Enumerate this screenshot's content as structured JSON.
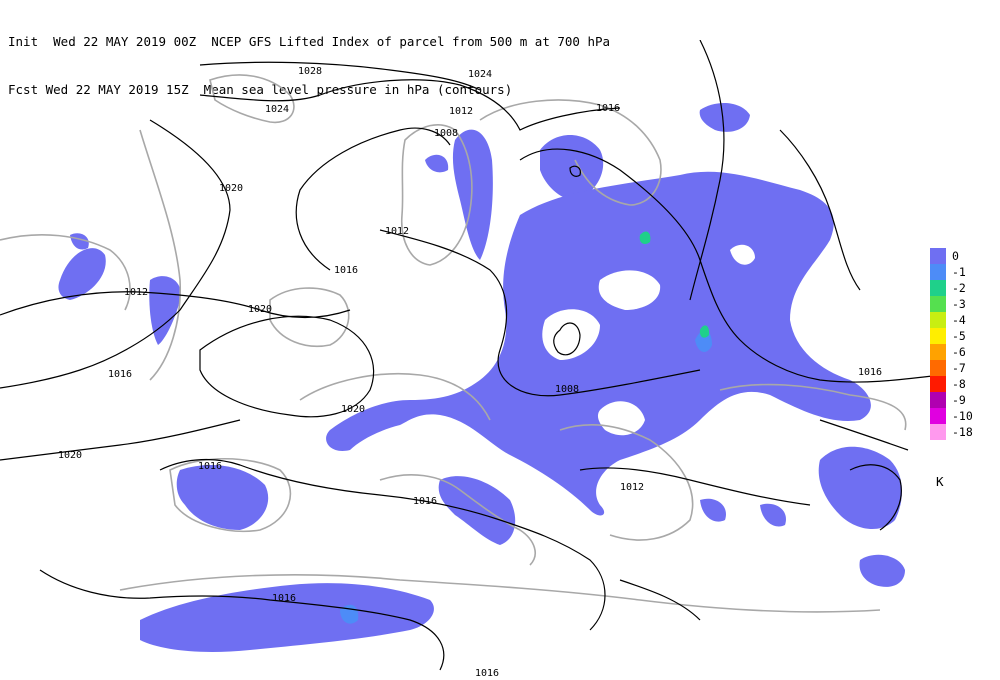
{
  "header": {
    "line1": "Init  Wed 22 MAY 2019 00Z  NCEP GFS Lifted Index of parcel from 500 m at 700 hPa",
    "line2": "Fcst Wed 22 MAY 2019 15Z  Mean sea level pressure in hPa (contours)"
  },
  "legend": {
    "unit": "K",
    "items": [
      {
        "label": "0",
        "color": "#6f6ff2"
      },
      {
        "label": "-1",
        "color": "#4d8cf7"
      },
      {
        "label": "-2",
        "color": "#1fd08a"
      },
      {
        "label": "-3",
        "color": "#55e04f"
      },
      {
        "label": "-4",
        "color": "#c8ee12"
      },
      {
        "label": "-5",
        "color": "#ffee00"
      },
      {
        "label": "-6",
        "color": "#ffa200"
      },
      {
        "label": "-7",
        "color": "#ff6a00"
      },
      {
        "label": "-8",
        "color": "#ff1a00"
      },
      {
        "label": "-9",
        "color": "#b000b0"
      },
      {
        "label": "-10",
        "color": "#e000e0"
      },
      {
        "label": "-18",
        "color": "#ff99ee"
      }
    ]
  },
  "isobars": [
    {
      "label": "1028"
    },
    {
      "label": "1024"
    },
    {
      "label": "1020"
    },
    {
      "label": "1016"
    },
    {
      "label": "1012"
    },
    {
      "label": "1008"
    }
  ]
}
